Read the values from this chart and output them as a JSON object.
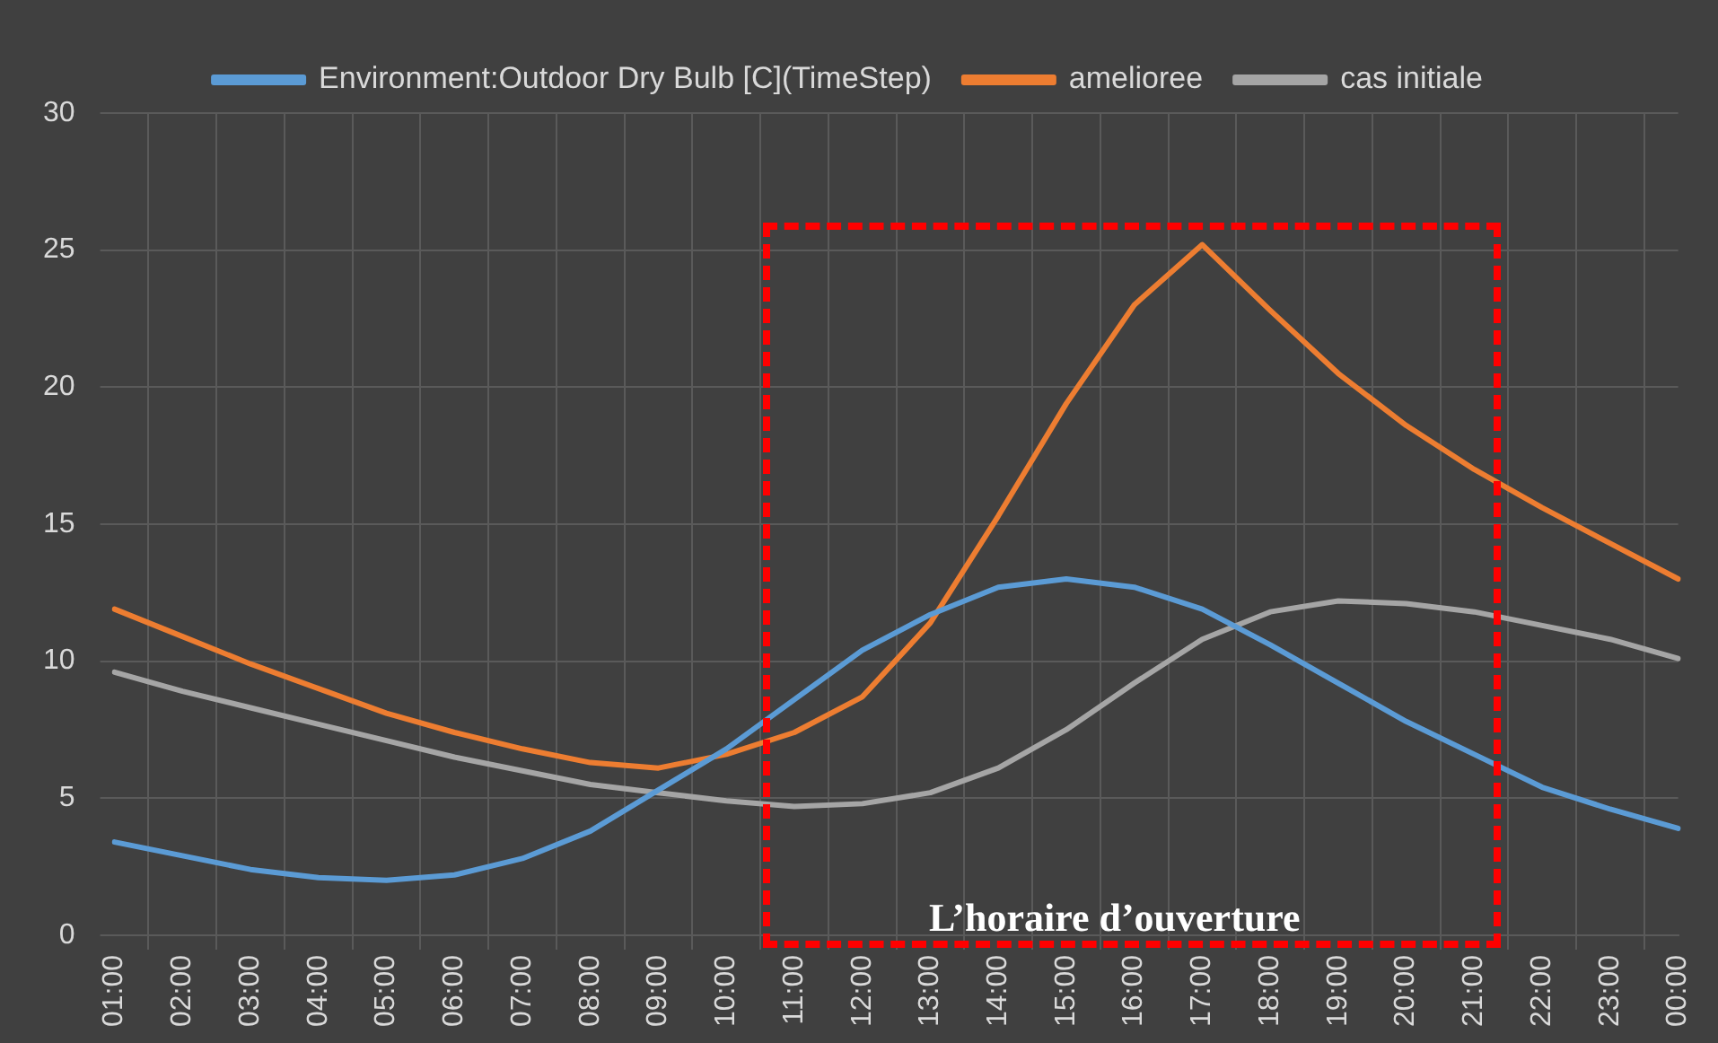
{
  "chart_data": {
    "type": "line",
    "categories": [
      "01:00",
      "02:00",
      "03:00",
      "04:00",
      "05:00",
      "06:00",
      "07:00",
      "08:00",
      "09:00",
      "10:00",
      "11:00",
      "12:00",
      "13:00",
      "14:00",
      "15:00",
      "16:00",
      "17:00",
      "18:00",
      "19:00",
      "20:00",
      "21:00",
      "22:00",
      "23:00",
      "00:00"
    ],
    "series": [
      {
        "name": "Environment:Outdoor Dry Bulb [C](TimeStep)",
        "color": "#5b9bd5",
        "values": [
          3.4,
          2.9,
          2.4,
          2.1,
          2.0,
          2.2,
          2.8,
          3.8,
          5.3,
          6.8,
          8.6,
          10.4,
          11.7,
          12.7,
          13.0,
          12.7,
          11.9,
          10.6,
          9.2,
          7.8,
          6.6,
          5.4,
          4.6,
          3.9
        ]
      },
      {
        "name": "amelioree",
        "color": "#ed7d31",
        "values": [
          11.9,
          10.9,
          9.9,
          9.0,
          8.1,
          7.4,
          6.8,
          6.3,
          6.1,
          6.6,
          7.4,
          8.7,
          11.4,
          15.3,
          19.4,
          23.0,
          25.2,
          22.8,
          20.5,
          18.6,
          17.0,
          15.6,
          14.3,
          13.0
        ]
      },
      {
        "name": "cas initiale",
        "color": "#a5a5a5",
        "values": [
          9.6,
          8.9,
          8.3,
          7.7,
          7.1,
          6.5,
          6.0,
          5.5,
          5.2,
          4.9,
          4.7,
          4.8,
          5.2,
          6.1,
          7.5,
          9.2,
          10.8,
          11.8,
          12.2,
          12.1,
          11.8,
          11.3,
          10.8,
          10.1
        ]
      }
    ],
    "ylim": [
      0,
      30
    ],
    "yticks": [
      0,
      5,
      10,
      15,
      20,
      25,
      30
    ],
    "grid": true,
    "legend": "top",
    "marker": "none",
    "line_style": "solid",
    "annotations": [
      "L’horaire d’ouverture"
    ]
  }
}
